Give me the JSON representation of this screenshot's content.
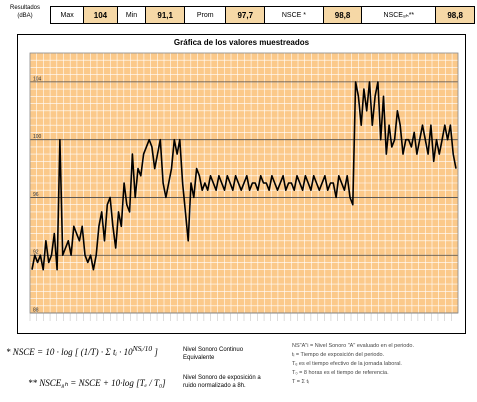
{
  "results": {
    "label": "Resultados (dBA)",
    "items": [
      {
        "label": "Max",
        "value": "104"
      },
      {
        "label": "Min",
        "value": "91,1"
      },
      {
        "label": "Prom",
        "value": "97,7"
      },
      {
        "label": "NSCE *",
        "value": "98,8"
      },
      {
        "label": "NSCE₈ₕ**",
        "value": "98,8"
      }
    ]
  },
  "chart_data": {
    "type": "line",
    "title": "Gráfica de los valores muestreados",
    "xlabel": "",
    "ylabel": "",
    "ylim": [
      88,
      106
    ],
    "yticks": [
      "88",
      "92",
      "96",
      "100",
      "104"
    ],
    "grid": true,
    "series": [
      {
        "color": "#000000",
        "values": [
          91,
          92,
          91.5,
          92,
          91,
          93,
          91.5,
          92,
          93.5,
          91,
          100,
          92,
          92.5,
          93,
          92,
          94,
          93.5,
          93,
          94,
          92,
          91.5,
          92,
          91,
          92,
          94,
          95,
          93,
          95.5,
          96,
          94,
          92.5,
          95,
          94,
          97,
          95.5,
          95,
          99,
          96,
          98,
          97.5,
          99,
          99.5,
          100,
          99.5,
          98,
          99,
          100,
          97,
          96,
          97,
          98,
          100,
          99,
          100,
          97,
          95,
          93,
          97,
          96,
          98,
          97.5,
          96.5,
          97,
          96.5,
          97.5,
          97,
          96.5,
          97.5,
          97,
          96.5,
          97.5,
          97,
          96.5,
          97.5,
          97,
          96.5,
          97,
          97.5,
          96.5,
          97,
          97,
          96.5,
          97.5,
          97,
          97,
          96.5,
          97.5,
          97,
          96.5,
          97,
          97.5,
          96.5,
          97,
          97,
          96.5,
          97.5,
          97,
          96.5,
          97.5,
          97,
          96.5,
          97.5,
          97,
          96.5,
          97,
          97.5,
          96.5,
          97,
          97,
          96,
          97.5,
          97,
          96.5,
          97.5,
          96,
          95.5,
          104,
          103,
          101,
          103.5,
          102,
          104,
          101,
          103,
          104,
          100,
          103,
          99,
          101,
          99.5,
          100,
          102,
          101,
          99,
          100,
          100,
          99.5,
          100.5,
          99,
          100,
          101,
          100,
          99,
          101,
          98.5,
          100,
          99,
          100,
          101,
          100,
          101,
          99,
          98
        ]
      }
    ]
  },
  "formulas": {
    "nsce_lhs": "NSCE",
    "nsce_desc": "Nivel Sonoro Continuo Equivalente",
    "nsce8h_lhs": "NSCE₈ₕ = NSCE + 10·log",
    "nsce8h_desc": "Nivel Sonoro de exposición a ruido normalizado a 8h.",
    "defs": [
      "NS\"A\"i = Nivel Sonoro \"A\" evaluado en el periodo.",
      "tᵢ = Tiempo de exposición del periodo.",
      "Tₑ es el tiempo efectivo de la jornada laboral.",
      "T₀ = 8 horas es el tiempo de referencia.",
      "T = Σ tᵢ"
    ]
  }
}
